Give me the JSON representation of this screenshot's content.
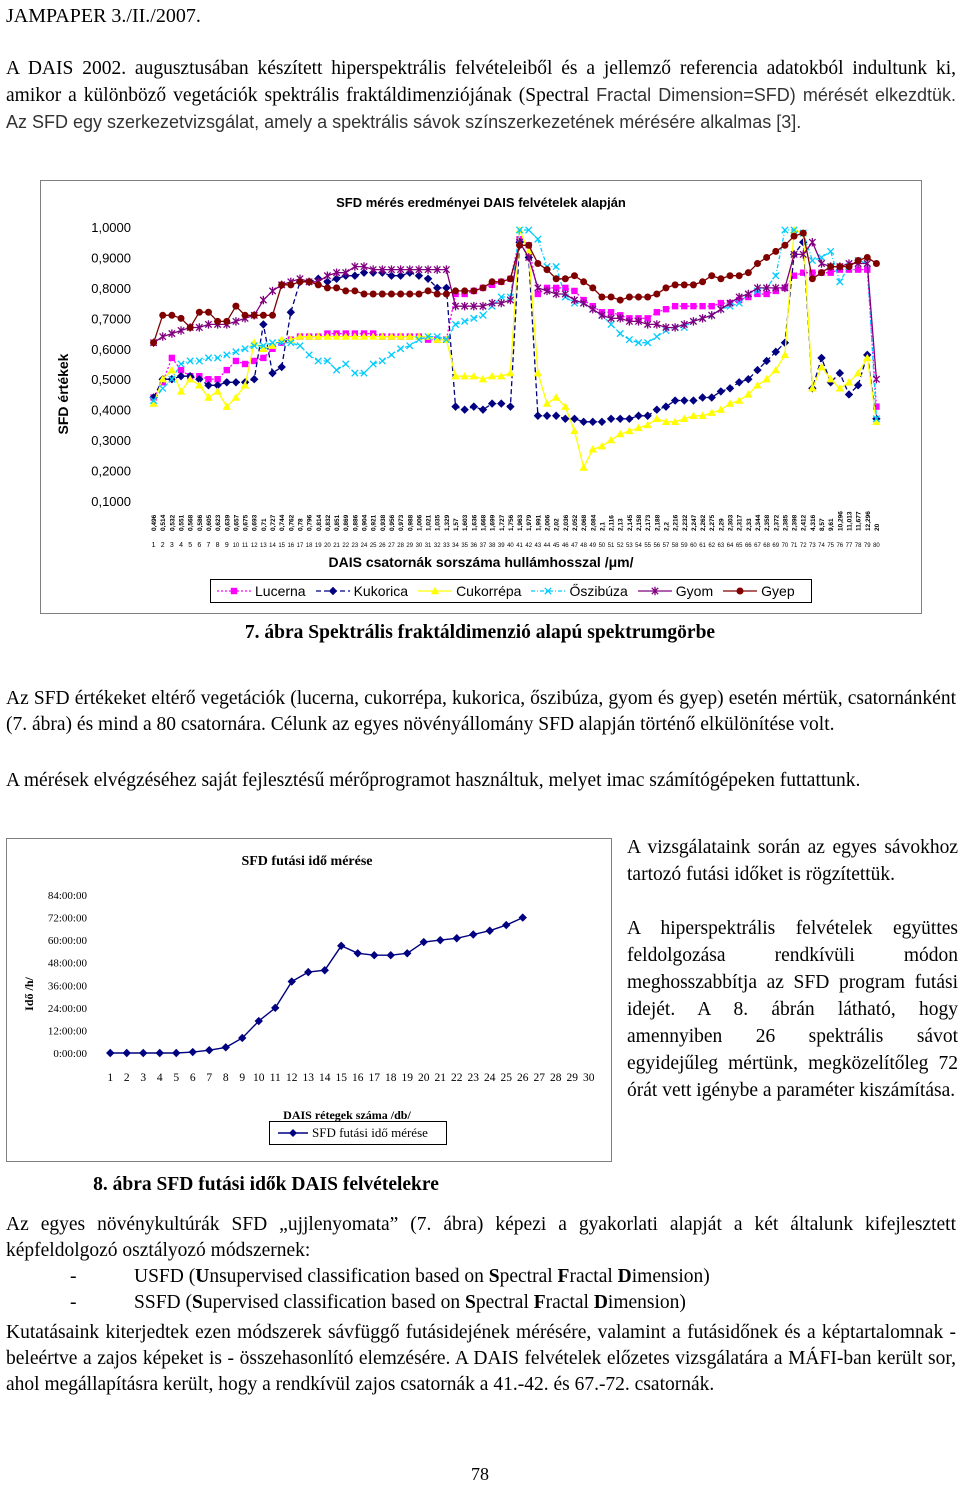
{
  "header": {
    "journal": "JAMPAPER 3./II./2007."
  },
  "intro": {
    "segments": [
      {
        "text": "A DAIS 2002. augusztusában készített hiperspektrális felvételeiből és a jellemző referencia adatokból indultunk ki, amikor a különböző vegetációk spektrális fraktáldimenziójának (Spectral ",
        "style": "serif"
      },
      {
        "text": "Fractal Dimension=SFD) mérését elkezdtük. Az SFD egy szerkezetvizsgálat, amely a spektrális sávok színszerkezetének mérésére alkalmas [3].",
        "style": "sans"
      }
    ]
  },
  "figure7": {
    "caption": "7. ábra Spektrális fraktáldimenzió alapú spektrumgörbe",
    "chart_data": {
      "type": "line",
      "title": "SFD mérés eredményei DAIS felvételek alapján",
      "ylabel": "SFD értékek",
      "xlabel": "DAIS csatornák sorszáma hullámhosszal /μm/",
      "ylim": [
        0.1,
        1.0
      ],
      "y_ticks": [
        "1,0000",
        "0,9000",
        "0,8000",
        "0,7000",
        "0,6000",
        "0,5000",
        "0,4000",
        "0,3000",
        "0,2000",
        "0,1000"
      ],
      "channel_numbers": [
        1,
        2,
        3,
        4,
        5,
        6,
        7,
        8,
        9,
        10,
        11,
        12,
        13,
        14,
        15,
        16,
        17,
        18,
        19,
        20,
        21,
        22,
        23,
        24,
        25,
        26,
        27,
        28,
        29,
        30,
        31,
        32,
        33,
        34,
        35,
        36,
        37,
        38,
        39,
        40,
        41,
        42,
        43,
        44,
        45,
        46,
        47,
        48,
        49,
        50,
        51,
        52,
        53,
        54,
        55,
        56,
        57,
        58,
        59,
        60,
        61,
        62,
        63,
        64,
        65,
        66,
        67,
        68,
        69,
        70,
        71,
        72,
        73,
        74,
        75,
        76,
        77,
        78,
        79,
        80
      ],
      "wavelengths": [
        "0,496",
        "0,514",
        "0,532",
        "0,551",
        "0,568",
        "0,586",
        "0,605",
        "0,623",
        "0,639",
        "0,657",
        "0,675",
        "0,693",
        "0,71",
        "0,727",
        "0,744",
        "0,762",
        "0,78",
        "0,796",
        "0,814",
        "0,832",
        "0,851",
        "0,869",
        "0,886",
        "0,904",
        "0,921",
        "0,938",
        "0,956",
        "0,973",
        "0,988",
        "1,006",
        "1,021",
        "1,035",
        "1,329",
        "1,57",
        "1,603",
        "1,636",
        "1,668",
        "1,699",
        "1,727",
        "1,756",
        "1,963",
        "1,979",
        "1,991",
        "2,006",
        "2,02",
        "2,036",
        "2,052",
        "2,068",
        "2,084",
        "2,1",
        "2,116",
        "2,13",
        "2,145",
        "2,158",
        "2,173",
        "2,188",
        "2,2",
        "2,216",
        "2,232",
        "2,247",
        "2,262",
        "2,275",
        "2,29",
        "2,303",
        "2,317",
        "2,33",
        "2,344",
        "2,358",
        "2,372",
        "2,385",
        "2,398",
        "2,412",
        "4,316",
        "8,57",
        "9,61",
        "10,296",
        "11,013",
        "11,677",
        "12,296",
        "20"
      ],
      "series": [
        {
          "name": "Lucerna",
          "color": "#FF00FF",
          "dash": "2,2",
          "marker": "square",
          "values": [
            0.44,
            0.49,
            0.57,
            0.53,
            0.51,
            0.51,
            0.5,
            0.5,
            0.53,
            0.56,
            0.55,
            0.56,
            0.57,
            0.6,
            0.62,
            0.63,
            0.64,
            0.64,
            0.64,
            0.65,
            0.65,
            0.65,
            0.65,
            0.65,
            0.65,
            0.64,
            0.64,
            0.64,
            0.64,
            0.64,
            0.63,
            0.63,
            0.63,
            0.78,
            0.78,
            0.79,
            0.8,
            0.81,
            0.82,
            0.83,
            0.96,
            0.94,
            0.78,
            0.8,
            0.8,
            0.8,
            0.79,
            0.76,
            0.74,
            0.72,
            0.72,
            0.71,
            0.7,
            0.7,
            0.7,
            0.72,
            0.73,
            0.74,
            0.74,
            0.74,
            0.74,
            0.74,
            0.75,
            0.75,
            0.76,
            0.77,
            0.78,
            0.78,
            0.79,
            0.8,
            0.84,
            0.85,
            0.85,
            0.85,
            0.85,
            0.86,
            0.86,
            0.86,
            0.86,
            0.41
          ]
        },
        {
          "name": "Kukorica",
          "color": "#000080",
          "dash": "5,3",
          "marker": "diamond",
          "values": [
            0.44,
            0.5,
            0.5,
            0.51,
            0.51,
            0.5,
            0.48,
            0.48,
            0.49,
            0.49,
            0.49,
            0.5,
            0.68,
            0.52,
            0.54,
            0.72,
            0.82,
            0.82,
            0.83,
            0.82,
            0.83,
            0.84,
            0.84,
            0.85,
            0.85,
            0.85,
            0.84,
            0.84,
            0.85,
            0.84,
            0.83,
            0.8,
            0.8,
            0.41,
            0.4,
            0.41,
            0.4,
            0.42,
            0.42,
            0.41,
            0.95,
            0.9,
            0.38,
            0.38,
            0.38,
            0.37,
            0.37,
            0.36,
            0.36,
            0.36,
            0.37,
            0.37,
            0.37,
            0.38,
            0.38,
            0.4,
            0.41,
            0.43,
            0.43,
            0.43,
            0.44,
            0.44,
            0.46,
            0.47,
            0.49,
            0.5,
            0.53,
            0.56,
            0.59,
            0.62,
            0.91,
            0.95,
            0.47,
            0.57,
            0.49,
            0.52,
            0.45,
            0.48,
            0.58,
            0.37
          ]
        },
        {
          "name": "Cukorrépa",
          "color": "#FFFF00",
          "dash": "",
          "marker": "triangle",
          "values": [
            0.42,
            0.5,
            0.53,
            0.46,
            0.5,
            0.48,
            0.44,
            0.46,
            0.41,
            0.44,
            0.48,
            0.62,
            0.6,
            0.61,
            0.63,
            0.63,
            0.64,
            0.64,
            0.64,
            0.64,
            0.64,
            0.64,
            0.64,
            0.64,
            0.64,
            0.64,
            0.64,
            0.64,
            0.64,
            0.64,
            0.64,
            0.63,
            0.63,
            0.51,
            0.51,
            0.51,
            0.5,
            0.51,
            0.51,
            0.52,
            0.99,
            0.92,
            0.52,
            0.42,
            0.44,
            0.41,
            0.33,
            0.21,
            0.27,
            0.28,
            0.3,
            0.32,
            0.33,
            0.34,
            0.35,
            0.37,
            0.36,
            0.36,
            0.37,
            0.38,
            0.38,
            0.39,
            0.4,
            0.42,
            0.43,
            0.45,
            0.48,
            0.5,
            0.53,
            0.58,
            0.99,
            0.98,
            0.47,
            0.54,
            0.5,
            0.47,
            0.49,
            0.52,
            0.57,
            0.36
          ]
        },
        {
          "name": "Őszibúza",
          "color": "#00CCFF",
          "dash": "4,2,1,2",
          "marker": "x",
          "values": [
            0.43,
            0.47,
            0.5,
            0.55,
            0.56,
            0.56,
            0.57,
            0.57,
            0.58,
            0.59,
            0.6,
            0.61,
            0.61,
            0.62,
            0.62,
            0.62,
            0.61,
            0.58,
            0.56,
            0.56,
            0.53,
            0.55,
            0.52,
            0.52,
            0.55,
            0.56,
            0.58,
            0.6,
            0.61,
            0.63,
            0.64,
            0.64,
            0.63,
            0.68,
            0.69,
            0.7,
            0.71,
            0.74,
            0.77,
            0.77,
            0.99,
            0.99,
            0.96,
            0.87,
            0.87,
            0.77,
            0.75,
            0.75,
            0.73,
            0.71,
            0.68,
            0.65,
            0.63,
            0.62,
            0.62,
            0.64,
            0.66,
            0.67,
            0.67,
            0.69,
            0.7,
            0.71,
            0.73,
            0.74,
            0.75,
            0.78,
            0.79,
            0.8,
            0.84,
            0.99,
            0.99,
            0.98,
            0.89,
            0.9,
            0.92,
            0.82,
            0.87,
            0.89,
            0.88,
            0.37
          ]
        },
        {
          "name": "Gyom",
          "color": "#800080",
          "dash": "",
          "marker": "star",
          "values": [
            0.62,
            0.64,
            0.65,
            0.66,
            0.67,
            0.67,
            0.68,
            0.68,
            0.68,
            0.69,
            0.7,
            0.71,
            0.76,
            0.79,
            0.81,
            0.82,
            0.83,
            0.82,
            0.82,
            0.84,
            0.85,
            0.85,
            0.87,
            0.87,
            0.86,
            0.86,
            0.86,
            0.86,
            0.86,
            0.86,
            0.86,
            0.86,
            0.86,
            0.74,
            0.74,
            0.74,
            0.74,
            0.75,
            0.75,
            0.76,
            0.95,
            0.9,
            0.8,
            0.79,
            0.78,
            0.78,
            0.76,
            0.75,
            0.73,
            0.71,
            0.7,
            0.7,
            0.69,
            0.69,
            0.68,
            0.68,
            0.67,
            0.67,
            0.68,
            0.69,
            0.7,
            0.71,
            0.73,
            0.75,
            0.77,
            0.78,
            0.8,
            0.8,
            0.8,
            0.8,
            0.91,
            0.91,
            0.95,
            0.88,
            0.87,
            0.87,
            0.88,
            0.88,
            0.88,
            0.5
          ]
        },
        {
          "name": "Gyep",
          "color": "#800000",
          "dash": "",
          "marker": "circle",
          "values": [
            0.62,
            0.71,
            0.71,
            0.7,
            0.67,
            0.72,
            0.72,
            0.69,
            0.69,
            0.74,
            0.71,
            0.71,
            0.71,
            0.71,
            0.81,
            0.81,
            0.82,
            0.82,
            0.81,
            0.8,
            0.8,
            0.79,
            0.79,
            0.78,
            0.78,
            0.78,
            0.78,
            0.78,
            0.78,
            0.78,
            0.79,
            0.78,
            0.78,
            0.79,
            0.79,
            0.79,
            0.8,
            0.82,
            0.82,
            0.83,
            0.94,
            0.94,
            0.88,
            0.86,
            0.83,
            0.83,
            0.84,
            0.82,
            0.8,
            0.77,
            0.77,
            0.76,
            0.77,
            0.77,
            0.77,
            0.78,
            0.8,
            0.81,
            0.81,
            0.81,
            0.82,
            0.84,
            0.83,
            0.84,
            0.84,
            0.85,
            0.88,
            0.9,
            0.92,
            0.94,
            0.97,
            0.98,
            0.83,
            0.85,
            0.87,
            0.87,
            0.87,
            0.89,
            0.9,
            0.88
          ]
        }
      ]
    }
  },
  "para2": "Az SFD értékeket eltérő vegetációk (lucerna, cukorrépa, kukorica, őszibúza, gyom és gyep) esetén mértük, csatornánként (7. ábra) és mind a 80 csatornára. Célunk az egyes növényállomány SFD alapján történő elkülönítése volt.",
  "para3": "A mérések elvégzéséhez saját fejlesztésű mérőprogramot használtuk, melyet imac számítógépeken futtattunk.",
  "figure8": {
    "caption": "8. ábra SFD futási idők DAIS felvételekre",
    "chart_data": {
      "type": "line",
      "title": "SFD futási idő mérése",
      "ylabel": "Idő /h/",
      "xlabel": "DAIS rétegek száma /db/",
      "y_ticks": [
        "84:00:00",
        "72:00:00",
        "60:00:00",
        "48:00:00",
        "36:00:00",
        "24:00:00",
        "12:00:00",
        "0:00:00"
      ],
      "ylim": [
        0,
        84
      ],
      "x": [
        1,
        2,
        3,
        4,
        5,
        6,
        7,
        8,
        9,
        10,
        11,
        12,
        13,
        14,
        15,
        16,
        17,
        18,
        19,
        20,
        21,
        22,
        23,
        24,
        25,
        26,
        27,
        28,
        29,
        30
      ],
      "series": [
        {
          "name": "SFD futási idő mérése",
          "color": "#000080",
          "x": [
            1,
            2,
            3,
            4,
            5,
            6,
            7,
            8,
            9,
            10,
            11,
            12,
            13,
            14,
            15,
            16,
            17,
            18,
            19,
            20,
            21,
            22,
            23,
            24,
            25,
            26
          ],
          "values": [
            0,
            0,
            0,
            0,
            0,
            0.5,
            1.5,
            3,
            8,
            17,
            24,
            38,
            43,
            44,
            57,
            53,
            52,
            52,
            53,
            59,
            60,
            61,
            63,
            65,
            68,
            72
          ]
        }
      ]
    }
  },
  "side_text": {
    "p1": "A vizsgálataink során az egyes sávokhoz tartozó futási időket is rögzítettük.",
    "p2": "A hiperspektrális felvételek együttes feldolgozása rendkívüli módon meghosszabbítja az SFD program futási idejét. A 8. ábrán látható, hogy amennyiben 26 spektrális sávot egyidejűleg mértünk, megközelítőleg 72 órát vett igénybe a paraméter kiszámítása."
  },
  "para4": "Az egyes növénykultúrák SFD „ujjlenyomata” (7. ábra) képezi a gyakorlati alapját a két általunk kifejlesztett képfeldolgozó osztályozó módszernek:",
  "list": [
    {
      "pre": "USFD (",
      "b1": "U",
      "t1": "nsupervised classification based on ",
      "b2": "S",
      "t2": "pectral ",
      "b3": "F",
      "t3": "ractal ",
      "b4": "D",
      "t4": "imension)"
    },
    {
      "pre": "SSFD (",
      "b1": "S",
      "t1": "upervised classification based on ",
      "b2": "S",
      "t2": "pectral ",
      "b3": "F",
      "t3": "ractal ",
      "b4": "D",
      "t4": "imension)"
    }
  ],
  "para5": "Kutatásaink kiterjedtek ezen módszerek sávfüggő futásidejének mérésére, valamint a futásidőnek és a képtartalomnak - beleértve a zajos képeket is - összehasonlító elemzésére. A DAIS felvételek előzetes vizsgálatára a MÁFI-ban került sor, ahol megállapításra került, hogy a rendkívül zajos csatornák a 41.-42. és 67.-72. csatornák.",
  "page_number": "78"
}
